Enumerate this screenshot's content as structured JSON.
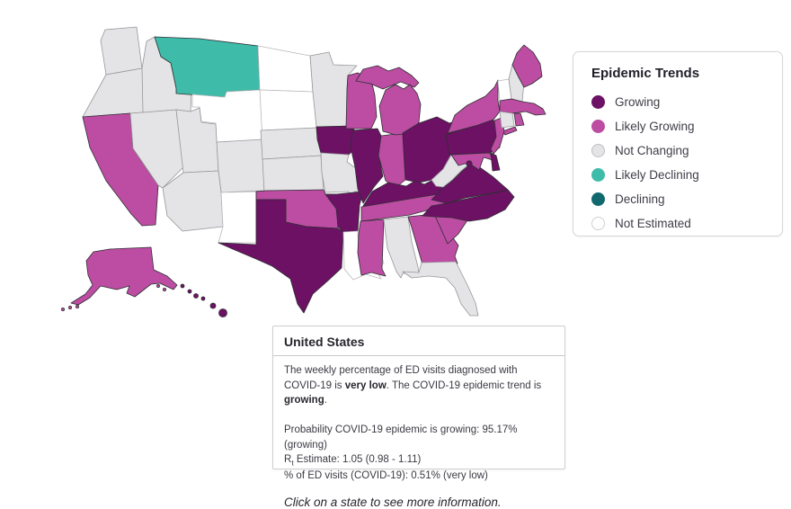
{
  "legend": {
    "title": "Epidemic Trends",
    "items": [
      {
        "id": "growing",
        "label": "Growing",
        "color": "#6D1164",
        "ring": "#6D1164"
      },
      {
        "id": "likely-growing",
        "label": "Likely Growing",
        "color": "#BC4DA2",
        "ring": "#BC4DA2"
      },
      {
        "id": "not-changing",
        "label": "Not Changing",
        "color": "#E4E4E6",
        "ring": "#BFBFC3"
      },
      {
        "id": "likely-declining",
        "label": "Likely Declining",
        "color": "#3FBCA9",
        "ring": "#3FBCA9"
      },
      {
        "id": "declining",
        "label": "Declining",
        "color": "#11686D",
        "ring": "#11686D"
      },
      {
        "id": "not-estimated",
        "label": "Not Estimated",
        "color": "#FFFFFF",
        "ring": "#CFCFD3"
      }
    ]
  },
  "map": {
    "stroke_colored": "#2E2E33",
    "stroke_muted": "#97979C",
    "stroke_white": "#B8B8BC",
    "state_trends": {
      "WA": "not-changing",
      "OR": "not-changing",
      "CA": "likely-growing",
      "NV": "not-changing",
      "ID": "not-changing",
      "MT": "likely-declining",
      "WY": "not-estimated",
      "UT": "not-changing",
      "CO": "not-changing",
      "AZ": "not-changing",
      "NM": "not-estimated",
      "ND": "not-estimated",
      "SD": "not-estimated",
      "NE": "not-changing",
      "KS": "not-changing",
      "OK": "likely-growing",
      "TX": "growing",
      "MN": "not-changing",
      "IA": "growing",
      "MO": "not-changing",
      "AR": "growing",
      "LA": "not-estimated",
      "WI": "likely-growing",
      "IL": "growing",
      "IN": "likely-growing",
      "MI": "likely-growing",
      "OH": "growing",
      "KY": "growing",
      "TN": "likely-growing",
      "MS": "likely-growing",
      "AL": "not-changing",
      "GA": "likely-growing",
      "FL": "not-changing",
      "SC": "likely-growing",
      "NC": "growing",
      "VA": "growing",
      "WV": "not-changing",
      "PA": "growing",
      "NY": "likely-growing",
      "NJ": "likely-growing",
      "MD": "likely-growing",
      "DE": "growing",
      "DC": "growing",
      "VT": "not-estimated",
      "NH": "not-changing",
      "MA": "likely-growing",
      "CT": "not-changing",
      "RI": "likely-growing",
      "ME": "likely-growing",
      "AK": "likely-growing",
      "HI": "growing"
    }
  },
  "info_panel": {
    "title": "United States",
    "summary": {
      "part1": "The weekly percentage of ED visits diagnosed with COVID-19 is ",
      "bold1": "very low",
      "part2": ". The COVID-19 epidemic trend is ",
      "bold2": "growing",
      "part3": "."
    },
    "stats": {
      "probability": "Probability COVID-19 epidemic is growing: 95.17% (growing)",
      "rt_prefix": "R",
      "rt_sub": "t",
      "rt_rest": " Estimate: 1.05 (0.98 - 1.11)",
      "ed_visits": "% of ED visits (COVID-19): 0.51% (very low)"
    },
    "footer": "Click on a state to see more information."
  }
}
